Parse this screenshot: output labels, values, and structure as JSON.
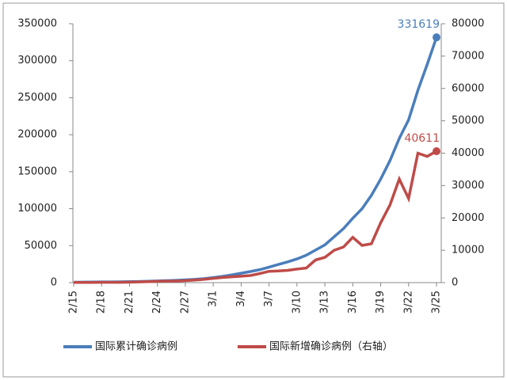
{
  "chart_data": {
    "type": "line",
    "categories": [
      "2/15",
      null,
      null,
      "2/18",
      null,
      null,
      "2/21",
      null,
      null,
      "2/24",
      null,
      null,
      "2/27",
      null,
      null,
      "3/1",
      null,
      null,
      "3/4",
      null,
      null,
      "3/7",
      null,
      null,
      "3/10",
      null,
      null,
      "3/13",
      null,
      null,
      "3/16",
      null,
      null,
      "3/19",
      null,
      null,
      "3/22",
      null,
      null,
      "3/25"
    ],
    "series": [
      {
        "name": "国际累计确诊病例",
        "color": "#4a7ebb",
        "values": [
          600,
          700,
          800,
          900,
          1000,
          1100,
          1300,
          1500,
          1900,
          2300,
          2700,
          3100,
          3700,
          4400,
          5400,
          6800,
          8500,
          10500,
          12700,
          15000,
          17500,
          21000,
          24500,
          28000,
          32000,
          37000,
          44000,
          51000,
          62000,
          73000,
          87000,
          100000,
          118000,
          140000,
          165000,
          195000,
          220000,
          260000,
          295000,
          331619
        ]
      },
      {
        "name": "国际新增确诊病例（右轴）",
        "color": "#be4b48",
        "axis": "y2",
        "values": [
          50,
          60,
          70,
          80,
          90,
          100,
          150,
          200,
          300,
          400,
          450,
          500,
          600,
          800,
          1000,
          1300,
          1600,
          1800,
          2000,
          2200,
          2800,
          3500,
          3600,
          3800,
          4200,
          4500,
          7000,
          7800,
          10000,
          11000,
          14000,
          11500,
          12000,
          18500,
          24000,
          32000,
          26000,
          40000,
          39000,
          40611
        ]
      }
    ],
    "ylim": [
      0,
      350000
    ],
    "yticks": [
      0,
      50000,
      100000,
      150000,
      200000,
      250000,
      300000,
      350000
    ],
    "y2lim": [
      0,
      80000
    ],
    "y2ticks": [
      0,
      10000,
      20000,
      30000,
      40000,
      50000,
      60000,
      70000,
      80000
    ],
    "legend": "bottom"
  }
}
